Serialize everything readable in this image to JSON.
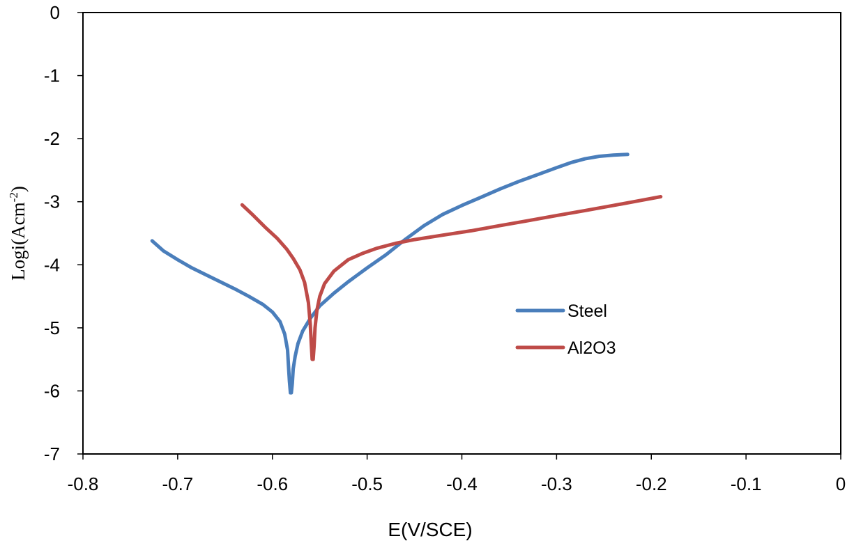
{
  "chart_data": {
    "type": "line",
    "xlabel": "E(V/SCE)",
    "ylabel": {
      "main": "Logi(Acm",
      "sup": "-2",
      "tail": ")"
    },
    "xlim": [
      -0.8,
      0
    ],
    "ylim": [
      -7,
      0
    ],
    "xticks": [
      -0.8,
      -0.7,
      -0.6,
      -0.5,
      -0.4,
      -0.3,
      -0.2,
      -0.1,
      0
    ],
    "xtick_labels": [
      "-0.8",
      "-0.7",
      "-0.6",
      "-0.5",
      "-0.4",
      "-0.3",
      "-0.2",
      "-0.1",
      "0"
    ],
    "yticks": [
      0,
      -1,
      -2,
      -3,
      -4,
      -5,
      -6,
      -7
    ],
    "ytick_labels": [
      "0",
      "-1",
      "-2",
      "-3",
      "-4",
      "-5",
      "-6",
      "-7"
    ],
    "grid": false,
    "legend_position": "center-right",
    "series": [
      {
        "name": "Steel",
        "color": "#4a7ebb",
        "points": [
          [
            -0.727,
            -3.62
          ],
          [
            -0.715,
            -3.78
          ],
          [
            -0.7,
            -3.92
          ],
          [
            -0.685,
            -4.05
          ],
          [
            -0.67,
            -4.16
          ],
          [
            -0.655,
            -4.27
          ],
          [
            -0.64,
            -4.38
          ],
          [
            -0.625,
            -4.5
          ],
          [
            -0.61,
            -4.63
          ],
          [
            -0.6,
            -4.75
          ],
          [
            -0.592,
            -4.9
          ],
          [
            -0.587,
            -5.1
          ],
          [
            -0.584,
            -5.35
          ],
          [
            -0.583,
            -5.6
          ],
          [
            -0.582,
            -5.85
          ],
          [
            -0.581,
            -6.03
          ],
          [
            -0.58,
            -6.03
          ],
          [
            -0.579,
            -5.88
          ],
          [
            -0.578,
            -5.65
          ],
          [
            -0.576,
            -5.45
          ],
          [
            -0.573,
            -5.25
          ],
          [
            -0.568,
            -5.05
          ],
          [
            -0.56,
            -4.85
          ],
          [
            -0.55,
            -4.65
          ],
          [
            -0.535,
            -4.45
          ],
          [
            -0.52,
            -4.27
          ],
          [
            -0.5,
            -4.05
          ],
          [
            -0.48,
            -3.84
          ],
          [
            -0.46,
            -3.6
          ],
          [
            -0.44,
            -3.38
          ],
          [
            -0.42,
            -3.2
          ],
          [
            -0.4,
            -3.06
          ],
          [
            -0.38,
            -2.93
          ],
          [
            -0.36,
            -2.8
          ],
          [
            -0.34,
            -2.68
          ],
          [
            -0.32,
            -2.57
          ],
          [
            -0.3,
            -2.46
          ],
          [
            -0.285,
            -2.38
          ],
          [
            -0.27,
            -2.32
          ],
          [
            -0.255,
            -2.28
          ],
          [
            -0.24,
            -2.26
          ],
          [
            -0.225,
            -2.25
          ]
        ]
      },
      {
        "name": "Al2O3",
        "color": "#be4b48",
        "points": [
          [
            -0.632,
            -3.05
          ],
          [
            -0.62,
            -3.22
          ],
          [
            -0.608,
            -3.4
          ],
          [
            -0.595,
            -3.58
          ],
          [
            -0.585,
            -3.75
          ],
          [
            -0.578,
            -3.9
          ],
          [
            -0.571,
            -4.08
          ],
          [
            -0.566,
            -4.28
          ],
          [
            -0.562,
            -4.6
          ],
          [
            -0.56,
            -4.95
          ],
          [
            -0.559,
            -5.25
          ],
          [
            -0.558,
            -5.5
          ],
          [
            -0.557,
            -5.5
          ],
          [
            -0.556,
            -5.3
          ],
          [
            -0.555,
            -5.0
          ],
          [
            -0.553,
            -4.72
          ],
          [
            -0.55,
            -4.5
          ],
          [
            -0.545,
            -4.3
          ],
          [
            -0.535,
            -4.1
          ],
          [
            -0.52,
            -3.92
          ],
          [
            -0.505,
            -3.82
          ],
          [
            -0.49,
            -3.74
          ],
          [
            -0.47,
            -3.66
          ],
          [
            -0.45,
            -3.6
          ],
          [
            -0.42,
            -3.53
          ],
          [
            -0.39,
            -3.46
          ],
          [
            -0.36,
            -3.38
          ],
          [
            -0.33,
            -3.3
          ],
          [
            -0.3,
            -3.22
          ],
          [
            -0.27,
            -3.14
          ],
          [
            -0.24,
            -3.06
          ],
          [
            -0.215,
            -2.99
          ],
          [
            -0.19,
            -2.92
          ]
        ]
      }
    ]
  }
}
